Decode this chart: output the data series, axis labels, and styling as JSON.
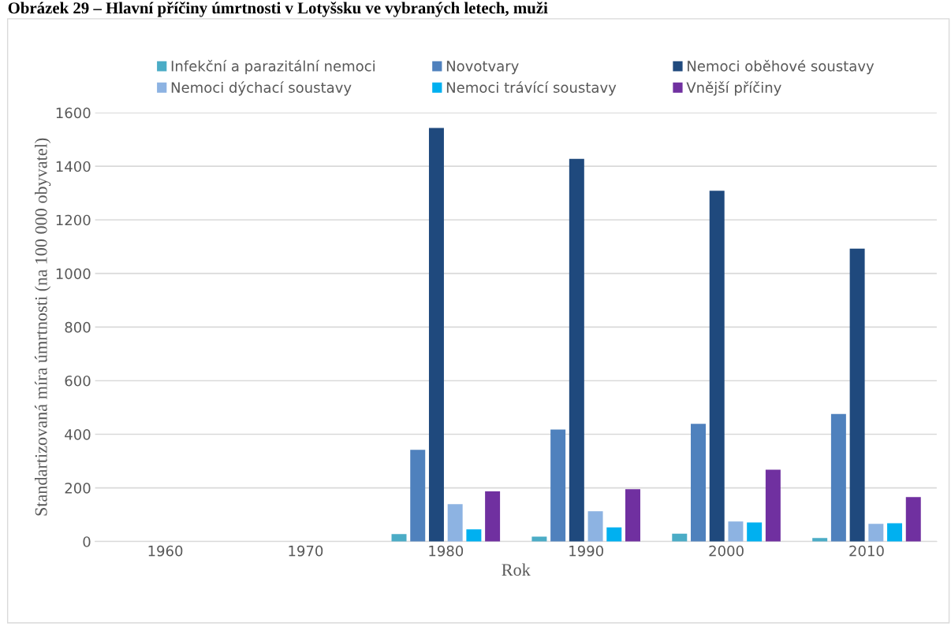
{
  "chart_data": {
    "type": "bar",
    "title": "Obrázek 29 – Hlavní příčiny úmrtnosti v Lotyšsku ve vybraných letech, muži",
    "xlabel": "Rok",
    "ylabel": "Standartizovaná míra úmrtnosti (na 100 000 obyvatel)",
    "categories": [
      "1960",
      "1970",
      "1980",
      "1990",
      "2000",
      "2010"
    ],
    "series": [
      {
        "name": "Infekční a parazitální nemoci",
        "color": "#4bacc6",
        "values": [
          null,
          null,
          28,
          18,
          29,
          13
        ]
      },
      {
        "name": "Novotvary",
        "color": "#4f81bd",
        "values": [
          null,
          null,
          342,
          418,
          439,
          476
        ]
      },
      {
        "name": "Nemoci oběhové soustavy",
        "color": "#1f497d",
        "values": [
          null,
          null,
          1543,
          1428,
          1309,
          1093
        ]
      },
      {
        "name": "Nemoci dýchací soustavy",
        "color": "#8db3e2",
        "values": [
          null,
          null,
          139,
          113,
          75,
          66
        ]
      },
      {
        "name": "Nemoci trávící soustavy",
        "color": "#00b0f0",
        "values": [
          null,
          null,
          45,
          53,
          71,
          68
        ]
      },
      {
        "name": "Vnější příčiny",
        "color": "#7030a0",
        "values": [
          null,
          null,
          187,
          195,
          268,
          166
        ]
      }
    ],
    "ylim": [
      0,
      1600
    ],
    "yticks": [
      0,
      200,
      400,
      600,
      800,
      1000,
      1200,
      1400,
      1600
    ],
    "grid": "y",
    "legend": "top"
  }
}
